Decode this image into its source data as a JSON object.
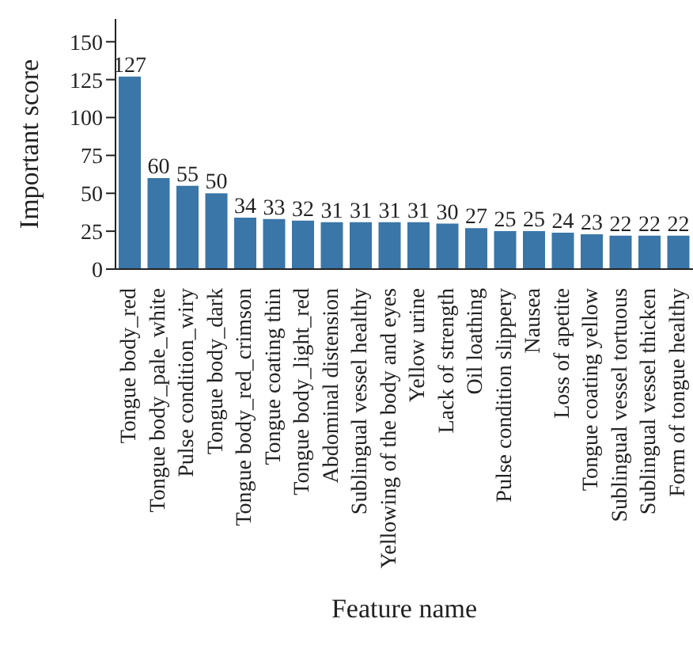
{
  "chart_data": {
    "type": "bar",
    "xlabel": "Feature name",
    "ylabel": "Important score",
    "categories": [
      "Tongue body_red",
      "Tongue body_pale_white",
      "Pulse condition_wiry",
      "Tongue body_dark",
      "Tongue body_red_crimson",
      "Tongue coating thin",
      "Tongue body_light_red",
      "Abdominal distension",
      "Sublingual vessel healthy",
      "Yellowing of the body and eyes",
      "Yellow urine",
      "Lack of strength",
      "Oil loathing",
      "Pulse condition slippery",
      "Nausea",
      "Loss of apetite",
      "Tongue coating yellow",
      "Sublingual vessel tortuous",
      "Sublingual vessel thicken",
      "Form of tongue healthy"
    ],
    "values": [
      127,
      60,
      55,
      50,
      34,
      33,
      32,
      31,
      31,
      31,
      31,
      30,
      27,
      25,
      25,
      24,
      23,
      22,
      22,
      22
    ],
    "color": "#3a76a8",
    "ylim": [
      0,
      165
    ],
    "yticks": [
      0,
      25,
      50,
      75,
      100,
      125,
      150
    ],
    "data_labels": true,
    "grid": false,
    "legend": false
  }
}
